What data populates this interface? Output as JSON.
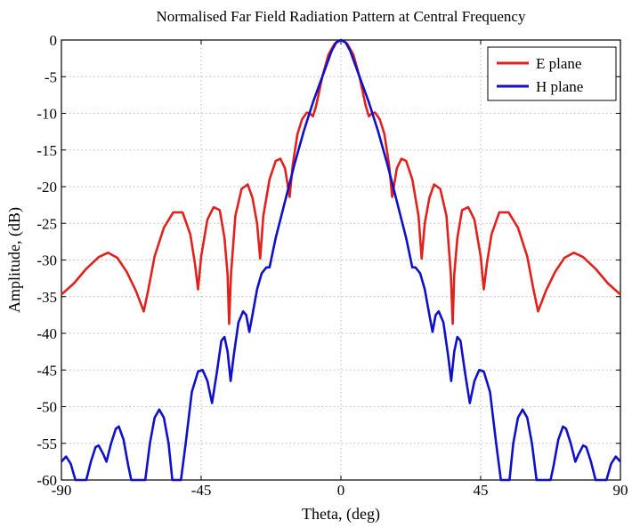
{
  "chart_data": {
    "type": "line",
    "title": "Normalised Far Field Radiation Pattern at Central Frequency",
    "xlabel": "Theta, (deg)",
    "ylabel": "Amplitude, (dB)",
    "xlim": [
      -90,
      90
    ],
    "ylim": [
      -60,
      0
    ],
    "xticks": [
      -90,
      -45,
      0,
      45,
      90
    ],
    "yticks": [
      0,
      -5,
      -10,
      -15,
      -20,
      -25,
      -30,
      -35,
      -40,
      -45,
      -50,
      -55,
      -60
    ],
    "grid": true,
    "legend_position": "top-right",
    "series": [
      {
        "name": "E plane",
        "color": "#e0211d",
        "points": [
          [
            -90,
            -34.7
          ],
          [
            -86,
            -33.2
          ],
          [
            -82,
            -31.2
          ],
          [
            -78,
            -29.6
          ],
          [
            -75,
            -29
          ],
          [
            -72,
            -29.7
          ],
          [
            -69,
            -31.6
          ],
          [
            -66,
            -34.2
          ],
          [
            -63.5,
            -37
          ],
          [
            -62,
            -34
          ],
          [
            -60,
            -29.5
          ],
          [
            -57,
            -25.6
          ],
          [
            -54,
            -23.5
          ],
          [
            -51,
            -23.5
          ],
          [
            -48.5,
            -26.5
          ],
          [
            -47,
            -30.5
          ],
          [
            -46,
            -34
          ],
          [
            -45,
            -29.5
          ],
          [
            -43,
            -24.5
          ],
          [
            -41,
            -22.8
          ],
          [
            -39,
            -23.2
          ],
          [
            -37.5,
            -27
          ],
          [
            -36.5,
            -32
          ],
          [
            -36,
            -38.7
          ],
          [
            -35.4,
            -32
          ],
          [
            -34,
            -24
          ],
          [
            -32,
            -20.3
          ],
          [
            -30,
            -19.7
          ],
          [
            -28.5,
            -21.5
          ],
          [
            -27,
            -25
          ],
          [
            -26,
            -29.8
          ],
          [
            -25,
            -24
          ],
          [
            -23,
            -19
          ],
          [
            -21,
            -16.5
          ],
          [
            -19.5,
            -16.2
          ],
          [
            -18,
            -17.5
          ],
          [
            -16.5,
            -21.4
          ],
          [
            -15.5,
            -17
          ],
          [
            -14,
            -12.8
          ],
          [
            -12.5,
            -10.8
          ],
          [
            -11,
            -9.9
          ],
          [
            -10,
            -10
          ],
          [
            -9,
            -10.4
          ],
          [
            -8,
            -9
          ],
          [
            -6,
            -5
          ],
          [
            -4,
            -2
          ],
          [
            -2,
            -0.5
          ],
          [
            0,
            0
          ],
          [
            2,
            -0.5
          ],
          [
            4,
            -2
          ],
          [
            6,
            -5
          ],
          [
            8,
            -9
          ],
          [
            9,
            -10.4
          ],
          [
            10,
            -10
          ],
          [
            11,
            -9.9
          ],
          [
            12.5,
            -10.8
          ],
          [
            14,
            -12.8
          ],
          [
            15.5,
            -17
          ],
          [
            16.5,
            -21.4
          ],
          [
            18,
            -17.5
          ],
          [
            19.5,
            -16.2
          ],
          [
            21,
            -16.5
          ],
          [
            23,
            -19
          ],
          [
            25,
            -24
          ],
          [
            26,
            -29.8
          ],
          [
            27,
            -25
          ],
          [
            28.5,
            -21.5
          ],
          [
            30,
            -19.7
          ],
          [
            32,
            -20.3
          ],
          [
            34,
            -24
          ],
          [
            35.4,
            -32
          ],
          [
            36,
            -38.7
          ],
          [
            36.5,
            -32
          ],
          [
            37.5,
            -27
          ],
          [
            39,
            -23.2
          ],
          [
            41,
            -22.8
          ],
          [
            43,
            -24.5
          ],
          [
            45,
            -29.5
          ],
          [
            46,
            -34
          ],
          [
            47,
            -30.5
          ],
          [
            48.5,
            -26.5
          ],
          [
            51,
            -23.5
          ],
          [
            54,
            -23.5
          ],
          [
            57,
            -25.6
          ],
          [
            60,
            -29.5
          ],
          [
            62,
            -34
          ],
          [
            63.5,
            -37
          ],
          [
            66,
            -34.2
          ],
          [
            69,
            -31.6
          ],
          [
            72,
            -29.7
          ],
          [
            75,
            -29
          ],
          [
            78,
            -29.6
          ],
          [
            82,
            -31.2
          ],
          [
            86,
            -33.2
          ],
          [
            90,
            -34.7
          ]
        ]
      },
      {
        "name": "H plane",
        "color": "#1010c8",
        "points": [
          [
            -90,
            -57.5
          ],
          [
            -88.5,
            -56.8
          ],
          [
            -87,
            -57.8
          ],
          [
            -85.5,
            -60
          ],
          [
            -82,
            -60
          ],
          [
            -80.5,
            -57.5
          ],
          [
            -79,
            -55.5
          ],
          [
            -78,
            -55.3
          ],
          [
            -76.5,
            -56.5
          ],
          [
            -75.5,
            -57.5
          ],
          [
            -74,
            -55
          ],
          [
            -72.5,
            -53
          ],
          [
            -71.5,
            -52.7
          ],
          [
            -70,
            -54.5
          ],
          [
            -68.5,
            -58
          ],
          [
            -67.5,
            -60
          ],
          [
            -63,
            -60
          ],
          [
            -61.5,
            -55
          ],
          [
            -60,
            -51.5
          ],
          [
            -58.5,
            -50.4
          ],
          [
            -57,
            -51.5
          ],
          [
            -55.5,
            -55
          ],
          [
            -54.3,
            -60
          ],
          [
            -51.5,
            -60
          ],
          [
            -50,
            -55
          ],
          [
            -48,
            -48
          ],
          [
            -46,
            -45.2
          ],
          [
            -44.5,
            -45
          ],
          [
            -43,
            -46.5
          ],
          [
            -41.5,
            -49.5
          ],
          [
            -40,
            -45.5
          ],
          [
            -38.5,
            -41
          ],
          [
            -37.5,
            -40.5
          ],
          [
            -36.5,
            -42.5
          ],
          [
            -35.5,
            -46.5
          ],
          [
            -34.5,
            -43
          ],
          [
            -33,
            -38.5
          ],
          [
            -31.5,
            -37
          ],
          [
            -30.5,
            -37.5
          ],
          [
            -29.5,
            -39.8
          ],
          [
            -28.5,
            -37.5
          ],
          [
            -27,
            -34
          ],
          [
            -25.5,
            -31.8
          ],
          [
            -24,
            -31
          ],
          [
            -23,
            -31
          ],
          [
            -21,
            -27
          ],
          [
            -18,
            -22
          ],
          [
            -15,
            -17
          ],
          [
            -12,
            -12.5
          ],
          [
            -9,
            -8.5
          ],
          [
            -6,
            -5
          ],
          [
            -3,
            -1.5
          ],
          [
            -1.5,
            -0.3
          ],
          [
            0,
            0
          ],
          [
            1.5,
            -0.3
          ],
          [
            3,
            -1.5
          ],
          [
            6,
            -5
          ],
          [
            9,
            -8.5
          ],
          [
            12,
            -12.5
          ],
          [
            15,
            -17
          ],
          [
            18,
            -22
          ],
          [
            21,
            -27
          ],
          [
            23,
            -31
          ],
          [
            24,
            -31
          ],
          [
            25.5,
            -31.8
          ],
          [
            27,
            -34
          ],
          [
            28.5,
            -37.5
          ],
          [
            29.5,
            -39.8
          ],
          [
            30.5,
            -37.5
          ],
          [
            31.5,
            -37
          ],
          [
            33,
            -38.5
          ],
          [
            34.5,
            -43
          ],
          [
            35.5,
            -46.5
          ],
          [
            36.5,
            -42.5
          ],
          [
            37.5,
            -40.5
          ],
          [
            38.5,
            -41
          ],
          [
            40,
            -45.5
          ],
          [
            41.5,
            -49.5
          ],
          [
            43,
            -46.5
          ],
          [
            44.5,
            -45
          ],
          [
            46,
            -45.2
          ],
          [
            48,
            -48
          ],
          [
            50,
            -55
          ],
          [
            51.5,
            -60
          ],
          [
            54.3,
            -60
          ],
          [
            55.5,
            -55
          ],
          [
            57,
            -51.5
          ],
          [
            58.5,
            -50.4
          ],
          [
            60,
            -51.5
          ],
          [
            61.5,
            -55
          ],
          [
            63,
            -60
          ],
          [
            67.5,
            -60
          ],
          [
            68.5,
            -58
          ],
          [
            70,
            -54.5
          ],
          [
            71.5,
            -52.7
          ],
          [
            72.5,
            -53
          ],
          [
            74,
            -55
          ],
          [
            75.5,
            -57.5
          ],
          [
            76.5,
            -56.5
          ],
          [
            78,
            -55.3
          ],
          [
            79,
            -55.5
          ],
          [
            80.5,
            -57.5
          ],
          [
            82,
            -60
          ],
          [
            85.5,
            -60
          ],
          [
            87,
            -57.8
          ],
          [
            88.5,
            -56.8
          ],
          [
            90,
            -57.5
          ]
        ]
      }
    ]
  }
}
